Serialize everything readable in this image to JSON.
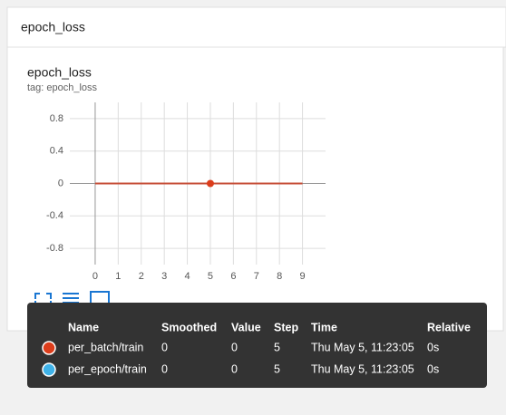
{
  "header": {
    "title": "epoch_loss"
  },
  "chart_data": {
    "type": "line",
    "title": "epoch_loss",
    "subtitle": "tag: epoch_loss",
    "x": [
      0,
      1,
      2,
      3,
      4,
      5,
      6,
      7,
      8,
      9
    ],
    "series": [
      {
        "name": "per_batch/train",
        "color": "#dc3d1b",
        "values": [
          0,
          0,
          0,
          0,
          0,
          0,
          0,
          0,
          0,
          0
        ]
      },
      {
        "name": "per_epoch/train",
        "color": "#3fb2e8",
        "values": [
          0,
          0,
          0,
          0,
          0,
          0,
          0,
          0,
          0,
          0
        ]
      }
    ],
    "xlim": [
      -1.1,
      10
    ],
    "ylim": [
      -1,
      1
    ],
    "xticks": [
      0,
      1,
      2,
      3,
      4,
      5,
      6,
      7,
      8,
      9
    ],
    "yticks": [
      0.8,
      0.4,
      0,
      -0.4,
      -0.8
    ],
    "grid": true
  },
  "tooltip": {
    "columns": [
      "Name",
      "Smoothed",
      "Value",
      "Step",
      "Time",
      "Relative"
    ],
    "rows": [
      {
        "smoothed": 0,
        "value": 0,
        "step": 5,
        "time": "Thu May 5, 11:23:05",
        "relative": "0s"
      },
      {
        "smoothed": 0,
        "value": 0,
        "step": 5,
        "time": "Thu May 5, 11:23:05",
        "relative": "0s"
      }
    ]
  }
}
